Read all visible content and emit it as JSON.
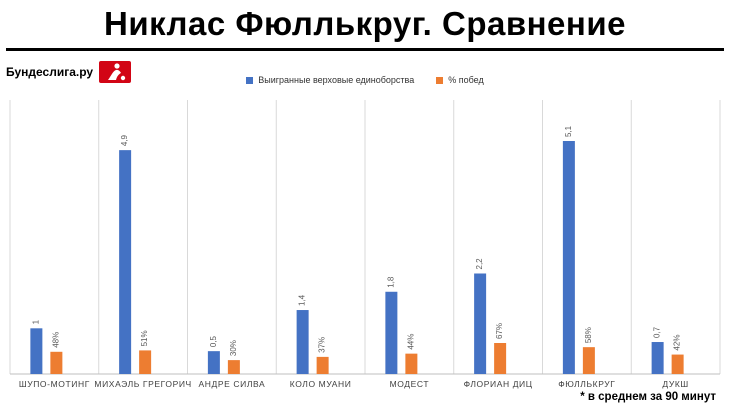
{
  "header": {
    "title": "Никлас Фюллькруг.  Сравнение",
    "brand": "Бундеслига.ру",
    "footnote": "* в среднем за  90 минут"
  },
  "colors": {
    "series1": "#4472c4",
    "series2": "#ed7d31",
    "grid": "#d9d9d9",
    "logo": "#d20515"
  },
  "icons": {
    "brand_logo": "bundesliga-logo-icon"
  },
  "chart_data": {
    "type": "bar",
    "categories": [
      "ШУПО-МОТИНГ",
      "МИХАЭЛЬ ГРЕГОРИЧ",
      "АНДРЕ СИЛВА",
      "КОЛО МУАНИ",
      "МОДЕСТ",
      "ФЛОРИАН ДИЦ",
      "ФЮЛЛЬКРУГ",
      "ДУКШ"
    ],
    "series": [
      {
        "name": "Выигранные верховые единоборства",
        "values": [
          1,
          4.9,
          0.5,
          1.4,
          1.8,
          2.2,
          5.1,
          0.7
        ],
        "labels": [
          "1",
          "4,9",
          "0,5",
          "1,4",
          "1,8",
          "2,2",
          "5,1",
          "0,7"
        ]
      },
      {
        "name": "% побед",
        "values": [
          48,
          51,
          30,
          37,
          44,
          67,
          58,
          42
        ],
        "labels": [
          "48%",
          "51%",
          "30%",
          "37%",
          "44%",
          "67%",
          "58%",
          "42%"
        ]
      }
    ],
    "legend_position": "top-center",
    "grid": "vertical category separators"
  }
}
